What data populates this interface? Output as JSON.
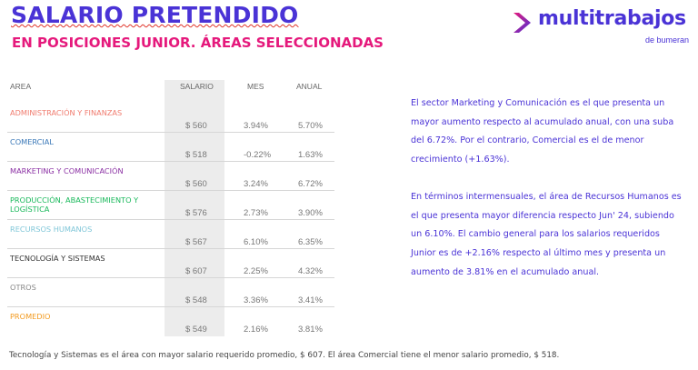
{
  "header": {
    "title": "SALARIO PRETENDIDO",
    "subtitle": "EN POSICIONES JUNIOR. ÁREAS SELECCIONADAS"
  },
  "logo": {
    "brand": "multitrabajos",
    "sub": "de bumeran",
    "icon": "chevron-arrow-icon"
  },
  "table": {
    "headers": {
      "area": "AREA",
      "salario": "SALARIO",
      "mes": "MES",
      "anual": "ANUAL"
    },
    "rows": [
      {
        "area": "ADMINISTRACIÓN Y FINANZAS",
        "salario": "$ 560",
        "mes": "3.94%",
        "anual": "5.70%",
        "color": "#f07b6e"
      },
      {
        "area": "COMERCIAL",
        "salario": "$ 518",
        "mes": "-0.22%",
        "anual": "1.63%",
        "color": "#3a78b8"
      },
      {
        "area": "MARKETING Y COMUNICACIÓN",
        "salario": "$ 560",
        "mes": "3.24%",
        "anual": "6.72%",
        "color": "#8a2fa3"
      },
      {
        "area": "PRODUCCIÓN, ABASTECIMIENTO Y LOGÍSTICA",
        "salario": "$ 576",
        "mes": "2.73%",
        "anual": "3.90%",
        "color": "#18b85a"
      },
      {
        "area": "RECURSOS HUMANOS",
        "salario": "$ 567",
        "mes": "6.10%",
        "anual": "6.35%",
        "color": "#7fc6d8"
      },
      {
        "area": "TECNOLOGÍA Y SISTEMAS",
        "salario": "$ 607",
        "mes": "2.25%",
        "anual": "4.32%",
        "color": "#333333"
      },
      {
        "area": "OTROS",
        "salario": "$ 548",
        "mes": "3.36%",
        "anual": "3.41%",
        "color": "#888888"
      },
      {
        "area": "PROMEDIO",
        "salario": "$ 549",
        "mes": "2.16%",
        "anual": "3.81%",
        "color": "#f39a1e"
      }
    ]
  },
  "commentary": {
    "paragraph1": "El sector Marketing y Comunicación es el que presenta un mayor aumento respecto al acumulado anual, con una suba del 6.72%. Por el contrario, Comercial es el de menor crecimiento (+1.63%).",
    "paragraph2": "En términos intermensuales, el área de Recursos Humanos es el que presenta mayor diferencia respecto Jun' 24, subiendo un 6.10%. El cambio general para los salarios requeridos Junior es de +2.16% respecto al último mes y presenta un aumento de 3.81% en el acumulado anual."
  },
  "footer": {
    "note": "Tecnología y Sistemas es el área con mayor salario requerido promedio, $ 607. El área Comercial tiene el menor salario promedio, $ 518."
  },
  "colors": {
    "brand_purple": "#4a33d6",
    "accent_pink": "#e5197c"
  }
}
